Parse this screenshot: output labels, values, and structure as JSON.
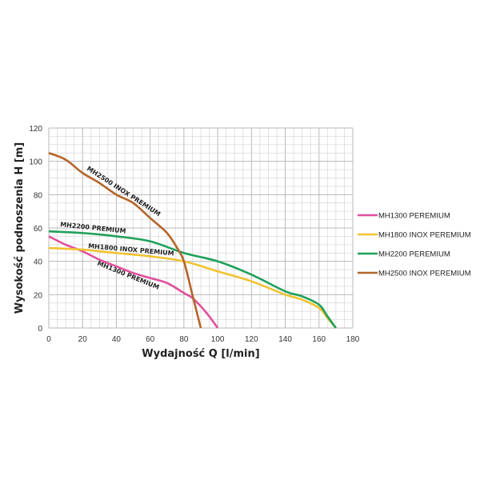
{
  "chart_data": {
    "type": "line",
    "title": "",
    "xlabel": "Wydajność Q [l/min]",
    "ylabel": "Wysokość podnoszenia H [m]",
    "xlim": [
      0,
      180
    ],
    "ylim": [
      0,
      120
    ],
    "xticks": [
      0,
      20,
      40,
      60,
      80,
      100,
      120,
      140,
      160,
      180
    ],
    "yticks": [
      0,
      20,
      40,
      60,
      80,
      100,
      120
    ],
    "grid": true,
    "legend_position": "right",
    "series": [
      {
        "name": "MH1300 PEREMIUM",
        "curve_label": "MH1300 PREMIUM",
        "color": "#e0509c",
        "x": [
          0,
          10,
          20,
          30,
          40,
          50,
          60,
          70,
          80,
          85,
          90,
          95,
          100
        ],
        "y": [
          55,
          50,
          46,
          41,
          37,
          33,
          30,
          27,
          21,
          18,
          13,
          7,
          0
        ]
      },
      {
        "name": "MH1800 INOX PEREMIUM",
        "curve_label": "MH1800 INOX PREMIUM",
        "color": "#f2c230",
        "x": [
          0,
          20,
          40,
          60,
          80,
          100,
          120,
          140,
          150,
          160,
          165,
          170
        ],
        "y": [
          48,
          47,
          45,
          43,
          40,
          34,
          28,
          20,
          17,
          12,
          6,
          0
        ]
      },
      {
        "name": "MH2200 PEREMIUM",
        "curve_label": "MH2200 PREMIUM",
        "color": "#1fa05a",
        "x": [
          0,
          20,
          40,
          60,
          80,
          100,
          120,
          140,
          150,
          160,
          165,
          170
        ],
        "y": [
          58,
          57,
          55,
          52,
          45,
          40,
          32,
          22,
          19,
          14,
          7,
          0
        ]
      },
      {
        "name": "MH2500 INOX PEREMIUM",
        "curve_label": "MH2500 INOX PREMIUM",
        "color": "#b5652a",
        "x": [
          0,
          10,
          20,
          30,
          40,
          50,
          60,
          70,
          76,
          80,
          85,
          90
        ],
        "y": [
          105,
          101,
          93,
          87,
          80,
          75,
          66,
          57,
          48,
          40,
          20,
          0
        ]
      }
    ]
  }
}
